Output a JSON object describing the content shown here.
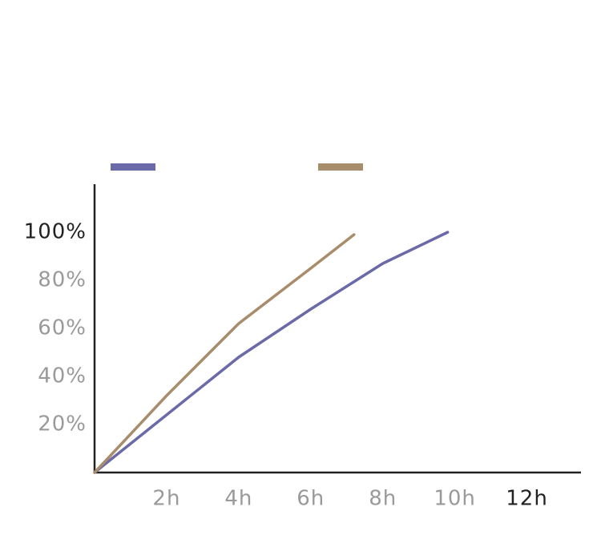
{
  "chart_data": {
    "type": "line",
    "series": [
      {
        "color": "#6b6aa8",
        "x": [
          0,
          2,
          4,
          6,
          8,
          9.8
        ],
        "values": [
          0,
          24,
          48,
          68,
          87,
          100
        ]
      },
      {
        "color": "#a88d6c",
        "x": [
          0,
          2,
          4,
          6,
          7.2
        ],
        "values": [
          0,
          32,
          62,
          85,
          99
        ]
      }
    ],
    "xlim": [
      0,
      13.5
    ],
    "xticks": [
      {
        "value": 2,
        "label": "2h"
      },
      {
        "value": 4,
        "label": "4h"
      },
      {
        "value": 6,
        "label": "6h"
      },
      {
        "value": 8,
        "label": "8h"
      },
      {
        "value": 10,
        "label": "10h"
      },
      {
        "value": 12,
        "label": "12h"
      }
    ],
    "ylim": [
      0,
      120
    ],
    "yticks": [
      {
        "value": 20,
        "label": "20%"
      },
      {
        "value": 40,
        "label": "40%"
      },
      {
        "value": 60,
        "label": "60%"
      },
      {
        "value": 80,
        "label": "80%"
      },
      {
        "value": 100,
        "label": "100%"
      }
    ],
    "grid": false
  }
}
